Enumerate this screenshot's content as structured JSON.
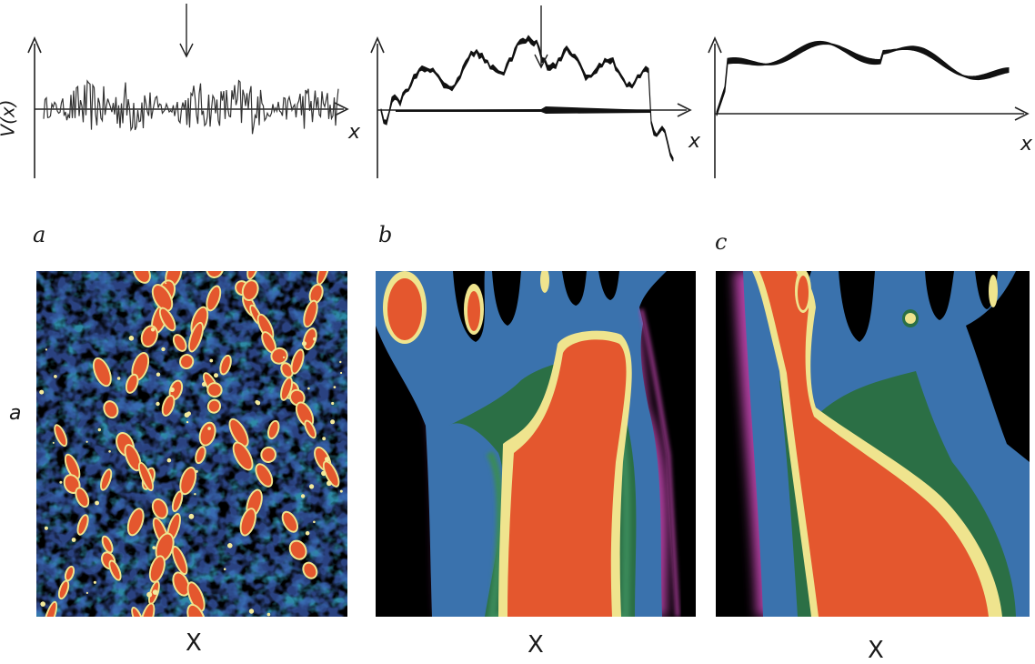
{
  "top_plots": {
    "ylabel": "V(x)",
    "xlabel_a": "x",
    "xlabel_b": "x",
    "xlabel_c": "x"
  },
  "panel_labels": {
    "a": "a",
    "b": "b",
    "c": "c"
  },
  "row_label": "a",
  "bottom_xlabels": {
    "a": "X",
    "b": "X",
    "c": "X"
  },
  "colors": {
    "background": "#000000",
    "level1": "#3a74a8",
    "level2": "#2c8aa0",
    "level3": "#2f6f3e",
    "level4": "#f2e6a0",
    "level5": "#e4552c",
    "edge": "#c84aa0"
  }
}
